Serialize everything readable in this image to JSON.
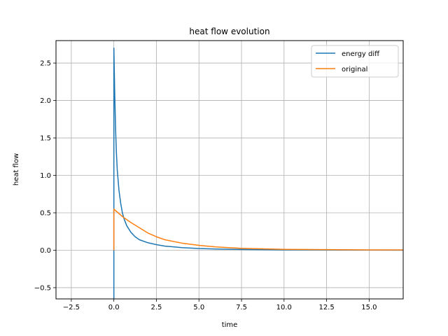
{
  "chart_data": {
    "type": "line",
    "title": "heat flow evolution",
    "xlabel": "time",
    "ylabel": "heat flow",
    "xlim": [
      -3.4,
      17.0
    ],
    "ylim": [
      -0.65,
      2.8
    ],
    "xticks": [
      -2.5,
      0.0,
      2.5,
      5.0,
      7.5,
      10.0,
      12.5,
      15.0
    ],
    "xtick_labels": [
      "−2.5",
      "0.0",
      "2.5",
      "5.0",
      "7.5",
      "10.0",
      "12.5",
      "15.0"
    ],
    "yticks": [
      -0.5,
      0.0,
      0.5,
      1.0,
      1.5,
      2.0,
      2.5
    ],
    "ytick_labels": [
      "−0.5",
      "0.0",
      "0.5",
      "1.0",
      "1.5",
      "2.0",
      "2.5"
    ],
    "grid": true,
    "legend_position": "top-right",
    "series": [
      {
        "name": "energy diff",
        "color": "#1f77b4",
        "x": [
          0.0,
          0.0,
          0.05,
          0.1,
          0.15,
          0.2,
          0.3,
          0.4,
          0.5,
          0.6,
          0.75,
          1.0,
          1.25,
          1.5,
          2.0,
          2.5,
          3.0,
          4.0,
          5.0,
          6.0,
          7.5,
          10.0,
          12.5,
          15.0,
          17.0
        ],
        "y": [
          -0.65,
          2.7,
          2.1,
          1.62,
          1.3,
          1.07,
          0.8,
          0.63,
          0.5,
          0.42,
          0.33,
          0.24,
          0.18,
          0.14,
          0.1,
          0.075,
          0.055,
          0.035,
          0.023,
          0.016,
          0.01,
          0.005,
          0.003,
          0.002,
          0.001
        ]
      },
      {
        "name": "original",
        "color": "#ff7f0e",
        "x": [
          0.0,
          0.0,
          0.25,
          0.5,
          1.0,
          1.5,
          2.0,
          2.5,
          3.0,
          4.0,
          5.0,
          6.0,
          7.5,
          10.0,
          12.5,
          15.0,
          17.0
        ],
        "y": [
          0.0,
          0.55,
          0.5,
          0.45,
          0.37,
          0.3,
          0.23,
          0.18,
          0.14,
          0.095,
          0.065,
          0.044,
          0.025,
          0.012,
          0.008,
          0.005,
          0.004
        ]
      }
    ]
  }
}
